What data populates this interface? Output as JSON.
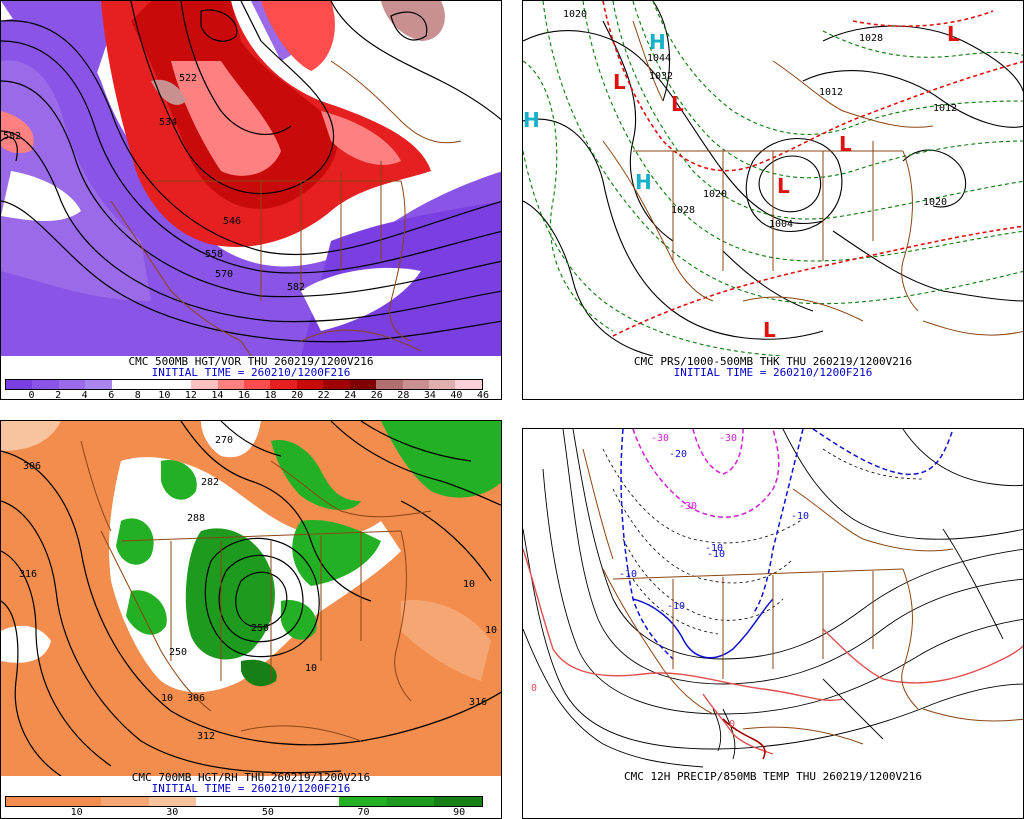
{
  "panels": [
    {
      "id": "p1",
      "title": "CMC 500MB HGT/VOR THU 260219/1200V216",
      "init": "INITIAL TIME = 260210/1200F216",
      "colorbar_labels": [
        "0",
        "2",
        "4",
        "6",
        "8",
        "10",
        "12",
        "14",
        "16",
        "18",
        "20",
        "22",
        "24",
        "26",
        "28",
        "34",
        "40",
        "46"
      ],
      "colorbar_colors": [
        "#7a3fe0",
        "#8a55e6",
        "#9a6ae8",
        "#ab85ee",
        "#ffffff",
        "#ffffff",
        "#ffffff",
        "#ffc0c0",
        "#ff8080",
        "#ff4d4d",
        "#e62020",
        "#c80a0a",
        "#a00000",
        "#800000",
        "#b07070",
        "#c89090",
        "#e0b0b0",
        "#ffd0d8"
      ],
      "contour_labels": [
        "582",
        "522",
        "534",
        "546",
        "558",
        "570",
        "582"
      ]
    },
    {
      "id": "p2",
      "title": "CMC PRS/1000-500MB THK THU 260219/1200V216",
      "init": "INITIAL TIME = 260210/1200F216",
      "contour_labels": [
        "1020",
        "1044",
        "1032",
        "1028",
        "1012",
        "1012",
        "1020",
        "1028",
        "1020",
        "1004"
      ],
      "highs": [
        "H",
        "H",
        "H"
      ],
      "lows": [
        "L",
        "L",
        "L",
        "L",
        "L",
        "L"
      ]
    },
    {
      "id": "p3",
      "title": "CMC 700MB HGT/RH THU 260219/1200V216",
      "init": "INITIAL TIME = 260210/1200F216",
      "colorbar_labels": [
        "10",
        "30",
        "50",
        "70",
        "90"
      ],
      "colorbar_colors": [
        "#f28d4e",
        "#f28d4e",
        "#f5a672",
        "#f8c4a0",
        "#ffffff",
        "#ffffff",
        "#ffffff",
        "#24b024",
        "#1e9a1e",
        "#168016"
      ],
      "contour_labels": [
        "270",
        "282",
        "288",
        "306",
        "316",
        "10",
        "10",
        "306",
        "312",
        "10",
        "250",
        "250",
        "10",
        "316"
      ]
    },
    {
      "id": "p4",
      "title": "CMC 12H PRECIP/850MB TEMP THU 260219/1200V216",
      "init": "",
      "contour_labels": [
        "-30",
        "-30",
        "-20",
        "-30",
        "-10",
        "-10",
        "-10",
        "-10",
        "-10",
        "0",
        "0"
      ]
    }
  ]
}
